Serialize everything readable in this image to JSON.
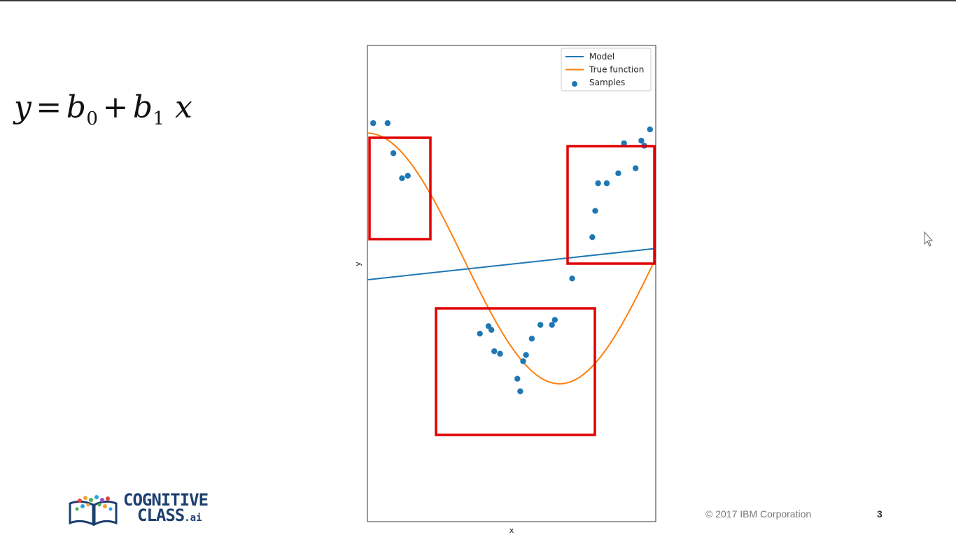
{
  "slide": {
    "equation": {
      "y": "y",
      "eq": "=",
      "b": "b",
      "sub0": "0",
      "plus": "+",
      "sub1": "1",
      "x": "x"
    },
    "footer": {
      "copyright": "© 2017 IBM Corporation",
      "page_number": "3"
    },
    "logo": {
      "line1": "COGNITIVE",
      "line2": "CLASS",
      "suffix": ".ai"
    }
  },
  "colors": {
    "model": "#1f77b4",
    "true_function": "#ff7f0e",
    "samples": "#1f77b4",
    "highlight_box": "#e00000"
  },
  "chart_data": {
    "type": "scatter",
    "xlabel": "x",
    "ylabel": "y",
    "xlim": [
      0,
      1
    ],
    "ylim": [
      -2.1,
      1.7
    ],
    "legend_position": "top-right",
    "series": [
      {
        "name": "Model",
        "kind": "line",
        "x": [
          0,
          1
        ],
        "y": [
          -0.17,
          0.08
        ]
      },
      {
        "name": "True function",
        "kind": "line",
        "function": "cos(1.5*pi*x)",
        "x": [
          0,
          0.05,
          0.1,
          0.15,
          0.2,
          0.25,
          0.3,
          0.35,
          0.4,
          0.45,
          0.5,
          0.55,
          0.6,
          0.65,
          0.7,
          0.75,
          0.8,
          0.85,
          0.9,
          0.95,
          1.0
        ],
        "y": [
          1.0,
          0.972,
          0.891,
          0.76,
          0.588,
          0.383,
          0.156,
          -0.078,
          -0.309,
          -0.522,
          -0.707,
          -0.853,
          -0.951,
          -0.996,
          -0.988,
          -0.924,
          -0.809,
          -0.649,
          -0.454,
          -0.233,
          0.0
        ]
      },
      {
        "name": "Samples",
        "kind": "scatter",
        "x": [
          0.02,
          0.07,
          0.09,
          0.12,
          0.14,
          0.39,
          0.42,
          0.43,
          0.44,
          0.46,
          0.52,
          0.53,
          0.54,
          0.55,
          0.57,
          0.6,
          0.64,
          0.65,
          0.71,
          0.78,
          0.79,
          0.8,
          0.83,
          0.87,
          0.93,
          0.89,
          0.95,
          0.96,
          0.98
        ],
        "y": [
          1.08,
          1.08,
          0.84,
          0.64,
          0.66,
          -0.6,
          -0.54,
          -0.57,
          -0.74,
          -0.76,
          -0.96,
          -1.06,
          -0.82,
          -0.77,
          -0.64,
          -0.53,
          -0.53,
          -0.49,
          -0.16,
          0.17,
          0.38,
          0.6,
          0.6,
          0.68,
          0.72,
          0.92,
          0.94,
          0.9,
          1.03
        ]
      }
    ],
    "legend": [
      "Model",
      "True function",
      "Samples"
    ],
    "highlight_boxes": 3
  }
}
